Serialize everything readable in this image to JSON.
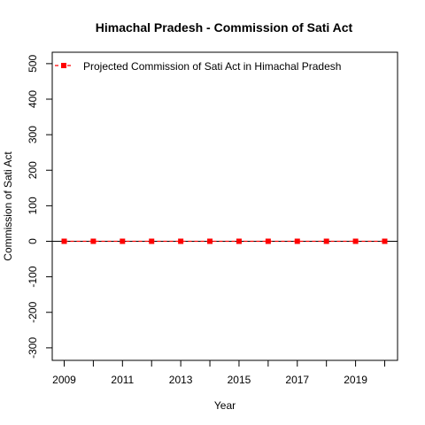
{
  "chart_data": {
    "type": "line",
    "title": "Himachal Pradesh  -  Commission of Sati Act",
    "xlabel": "Year",
    "ylabel": "Commission of Sati Act",
    "x": [
      2009,
      2010,
      2011,
      2012,
      2013,
      2014,
      2015,
      2016,
      2017,
      2018,
      2019,
      2020
    ],
    "xticks": [
      2009,
      2011,
      2013,
      2015,
      2017,
      2019
    ],
    "yticks": [
      -300,
      -200,
      -100,
      0,
      100,
      200,
      300,
      400,
      500
    ],
    "xlim": [
      2009,
      2020
    ],
    "ylim": [
      -300,
      500
    ],
    "reference_line_y": 0,
    "legend_position": "top-left",
    "series": [
      {
        "name": "Projected  Commission of Sati Act  in  Himachal Pradesh",
        "values": [
          0,
          0,
          0,
          0,
          0,
          0,
          0,
          0,
          0,
          0,
          0,
          0
        ],
        "color": "#ff0000",
        "line_style": "dashed",
        "marker": "square"
      }
    ]
  }
}
